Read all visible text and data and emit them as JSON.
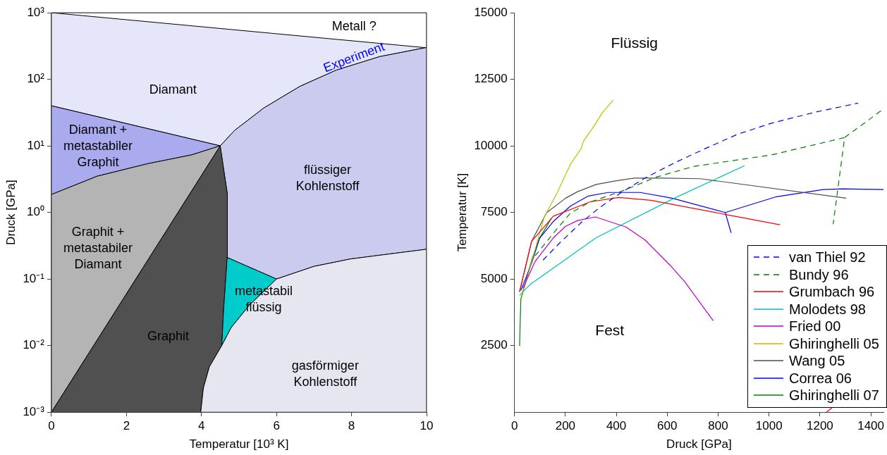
{
  "chart_data": [
    {
      "type": "area",
      "xlabel": "Temperatur [10³ K]",
      "ylabel": "Druck [GPa]",
      "log": "y",
      "xlim": [
        0,
        10
      ],
      "xticks": [
        0,
        2,
        4,
        6,
        8,
        10
      ],
      "ylim": [
        0.001,
        1000
      ],
      "yticks": [
        {
          "value": 0.001,
          "label": "10⁻³"
        },
        {
          "value": 0.01,
          "label": "10⁻²"
        },
        {
          "value": 0.1,
          "label": "10⁻¹"
        },
        {
          "value": 1,
          "label": "10⁰"
        },
        {
          "value": 10,
          "label": "10¹"
        },
        {
          "value": 100,
          "label": "10²"
        },
        {
          "value": 1000,
          "label": "10³"
        }
      ],
      "series": [
        {
          "color": "#e6e6fa",
          "x": [
            0,
            10,
            10,
            8.75,
            7.59,
            6.62,
            5.66,
            4.88,
            4.5,
            0
          ],
          "values": [
            1000,
            1000,
            300,
            219,
            137,
            78,
            37,
            17,
            10,
            40
          ]
        },
        {
          "color": "#ffffff",
          "x": [
            0,
            10,
            10
          ],
          "values": [
            1000,
            1000,
            300
          ]
        },
        {
          "color": "#aaaaee",
          "x": [
            0,
            4.5,
            3.73,
            2.57,
            1.22,
            0
          ],
          "values": [
            40,
            10,
            7.3,
            5.4,
            3.5,
            1.86
          ]
        },
        {
          "color": "#cbcbf0",
          "x": [
            4.5,
            4.88,
            5.66,
            6.62,
            7.59,
            8.75,
            10,
            10,
            7.97,
            7.0,
            6.0,
            4.69,
            4.69
          ],
          "values": [
            10,
            17,
            37,
            78,
            137,
            219,
            300,
            0.28,
            0.2,
            0.155,
            0.1,
            0.21,
            1.86
          ]
        },
        {
          "color": "#b4b4b4",
          "x": [
            0,
            1.22,
            2.57,
            3.73,
            4.5,
            0
          ],
          "values": [
            1.86,
            3.5,
            5.4,
            7.3,
            10,
            0.001
          ]
        },
        {
          "color": "#505050",
          "x": [
            0,
            4.5,
            4.69,
            4.69,
            4.59,
            4.54,
            4.21,
            4.05,
            3.98
          ],
          "values": [
            0.001,
            10,
            1.86,
            0.21,
            0.035,
            0.01,
            0.0048,
            0.0023,
            0.001
          ]
        },
        {
          "color": "#00cccc",
          "x": [
            4.69,
            6.0,
            5.27,
            4.79,
            4.54,
            4.59
          ],
          "values": [
            0.21,
            0.1,
            0.04,
            0.0186,
            0.01,
            0.035
          ]
        },
        {
          "color": "#e6e6f0",
          "x": [
            3.98,
            4.05,
            4.21,
            4.54,
            4.79,
            5.27,
            6.0,
            7.0,
            7.97,
            10,
            10
          ],
          "values": [
            0.001,
            0.0023,
            0.0048,
            0.01,
            0.0186,
            0.04,
            0.1,
            0.155,
            0.2,
            0.28,
            0.001
          ]
        }
      ],
      "annotations": [
        "Metall ?",
        "Experiment",
        "Diamant",
        "Diamant +\nmetastabiler\nGraphit",
        "flüssiger\nKohlenstoff",
        "Graphit +\nmetastabiler\nDiamant",
        "metastabil\nflüssig",
        "Graphit",
        "gasförmiger\nKohlenstoff"
      ]
    },
    {
      "type": "line",
      "xlabel": "Druck [GPa]",
      "ylabel": "Temperatur [K]",
      "legend": "bottom right",
      "xlim": [
        0,
        1450
      ],
      "xticks": [
        0,
        200,
        400,
        600,
        800,
        1000,
        1200,
        1400
      ],
      "ylim": [
        0,
        15000
      ],
      "yticks": [
        2500,
        5000,
        7500,
        10000,
        12500,
        15000
      ],
      "series": [
        {
          "name": "van Thiel 92",
          "color": "#0000ff",
          "line_style": "dashed",
          "x": [
            112,
            181,
            265,
            335,
            416,
            508,
            628,
            750,
            879,
            1010,
            1177,
            1350
          ],
          "values": [
            5710,
            6385,
            7145,
            7685,
            8225,
            8765,
            9360,
            9900,
            10445,
            10850,
            11255,
            11605
          ]
        },
        {
          "name": "Bundy 96",
          "color": "#008000",
          "line_style": "dashed",
          "x": [
            81,
            173,
            220,
            293,
            424,
            555,
            703,
            1010,
            1297,
            1252,
            null,
            1297,
            1450
          ],
          "values": [
            5870,
            6955,
            7470,
            7875,
            8305,
            8820,
            9225,
            9660,
            10310,
            7060,
            null,
            10310,
            11390
          ]
        },
        {
          "name": "Grumbach 96",
          "color": "#ff0000",
          "x": [
            20,
            67,
            153,
            298,
            410,
            536,
            834,
            1043,
            null,
            1225,
            1247
          ],
          "values": [
            4520,
            6410,
            7360,
            7900,
            8060,
            7955,
            7415,
            7035,
            null,
            0,
            160
          ]
        },
        {
          "name": "Molodets 98",
          "color": "#00bfbf",
          "x": [
            20,
            61,
            321,
            628,
            904
          ],
          "values": [
            4385,
            4790,
            6550,
            8035,
            9255
          ]
        },
        {
          "name": "Fried 00",
          "color": "#bf00bf",
          "x": [
            33,
            81,
            153,
            201,
            248,
            318,
            438,
            513,
            611,
            669,
            781
          ],
          "values": [
            4655,
            5655,
            6550,
            6980,
            7195,
            7330,
            6955,
            6465,
            5520,
            4895,
            3435
          ]
        },
        {
          "name": "Ghiringhelli 05",
          "color": "#bfbf00",
          "x": [
            28,
            117,
            167,
            220,
            262,
            271,
            312,
            346,
            388
          ],
          "values": [
            4300,
            7330,
            8225,
            9310,
            9900,
            10170,
            10740,
            11255,
            11715
          ]
        },
        {
          "name": "Wang 05",
          "color": "#4d4d4d",
          "x": [
            20,
            67,
            126,
            201,
            248,
            321,
            396,
            471,
            583,
            731,
            1303
          ],
          "values": [
            4520,
            6410,
            7490,
            8035,
            8280,
            8550,
            8685,
            8790,
            8790,
            8765,
            8035
          ]
        },
        {
          "name": "Correa 06",
          "color": "#0000ff",
          "x": [
            25,
            67,
            98,
            151,
            220,
            290,
            368,
            494,
            619,
            828,
            851,
            null,
            828,
            1029,
            1213,
            1289,
            1450
          ],
          "values": [
            4570,
            5575,
            6520,
            7145,
            7740,
            8115,
            8250,
            8250,
            8035,
            7495,
            6735,
            null,
            7495,
            8090,
            8360,
            8385,
            8360
          ]
        },
        {
          "name": "Ghiringhelli 07",
          "color": "#008000",
          "x": [
            20,
            25,
            70,
            98,
            145
          ],
          "values": [
            2490,
            4250,
            5790,
            6520,
            7280
          ]
        }
      ],
      "annotations": [
        "Flüssig",
        "Fest"
      ]
    }
  ]
}
